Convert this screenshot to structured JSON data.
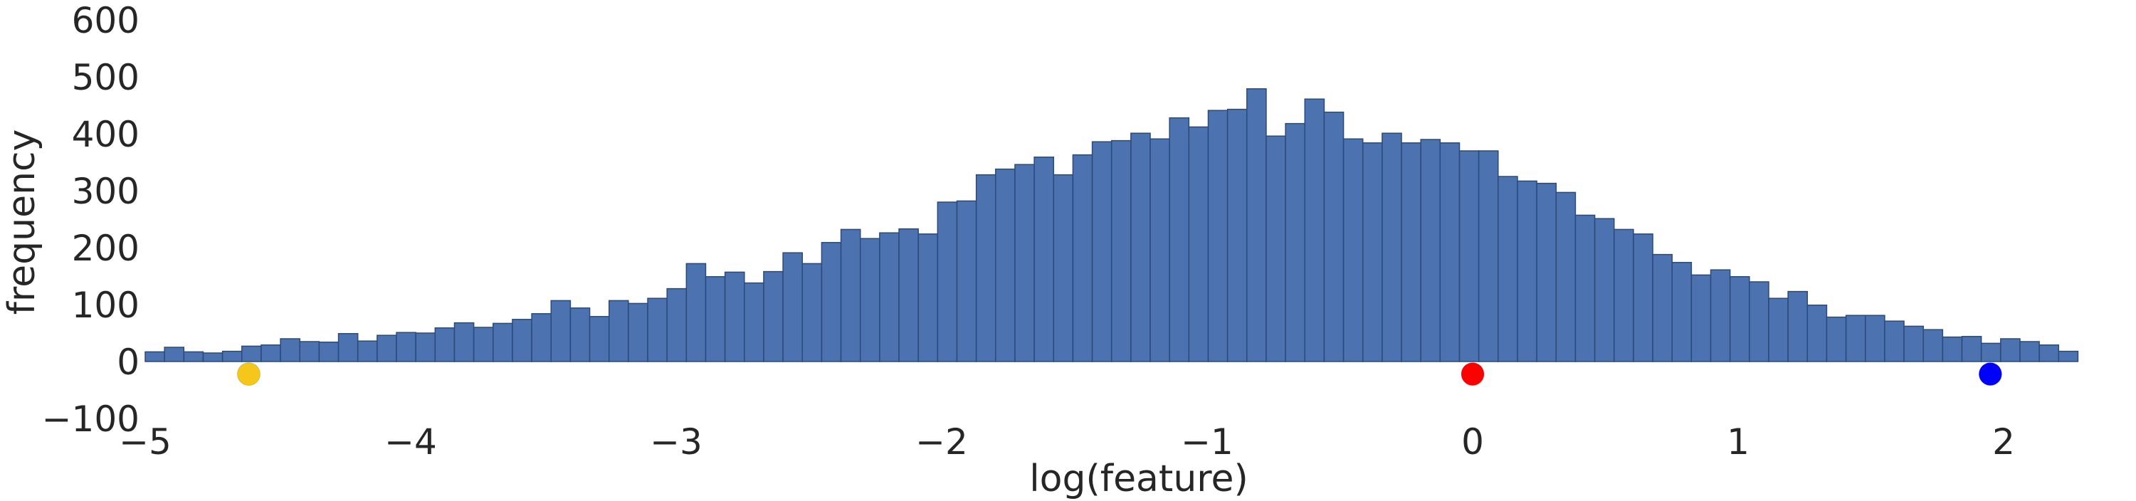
{
  "chart_data": {
    "type": "histogram",
    "title": "",
    "xlabel": "log(feature)",
    "ylabel": "frequency",
    "xlim": [
      -5,
      2.28
    ],
    "ylim": [
      -100,
      600
    ],
    "grid": false,
    "bin_start": -5,
    "bin_width": 0.0728,
    "bar_color": "#4c72b0",
    "x_ticks": [
      "−5",
      "−4",
      "−3",
      "−2",
      "−1",
      "0",
      "1",
      "2"
    ],
    "x_tick_values": [
      -5,
      -4,
      -3,
      -2,
      -1,
      0,
      1,
      2
    ],
    "y_ticks": [
      "600",
      "500",
      "400",
      "300",
      "200",
      "100",
      "0",
      "−100"
    ],
    "y_tick_values": [
      600,
      500,
      400,
      300,
      200,
      100,
      0,
      -100
    ],
    "values": [
      17,
      25,
      17,
      15,
      18,
      27,
      29,
      40,
      35,
      34,
      49,
      36,
      46,
      51,
      50,
      59,
      68,
      60,
      67,
      74,
      84,
      107,
      94,
      79,
      107,
      102,
      111,
      128,
      172,
      149,
      157,
      138,
      158,
      191,
      172,
      209,
      232,
      216,
      226,
      233,
      224,
      280,
      282,
      328,
      338,
      346,
      359,
      328,
      363,
      386,
      388,
      401,
      391,
      428,
      412,
      441,
      443,
      479,
      396,
      418,
      461,
      438,
      391,
      384,
      401,
      384,
      390,
      384,
      370,
      370,
      325,
      317,
      313,
      297,
      257,
      251,
      232,
      224,
      188,
      174,
      152,
      161,
      149,
      140,
      111,
      123,
      99,
      78,
      81,
      81,
      71,
      62,
      56,
      43,
      44,
      32,
      40,
      35,
      29,
      18
    ],
    "markers": [
      {
        "x": -4.61,
        "y": -22,
        "color": "#f5c71a"
      },
      {
        "x": 0,
        "y": -22,
        "color": "#ff0000"
      },
      {
        "x": 1.95,
        "y": -22,
        "color": "#0000ff"
      }
    ]
  }
}
